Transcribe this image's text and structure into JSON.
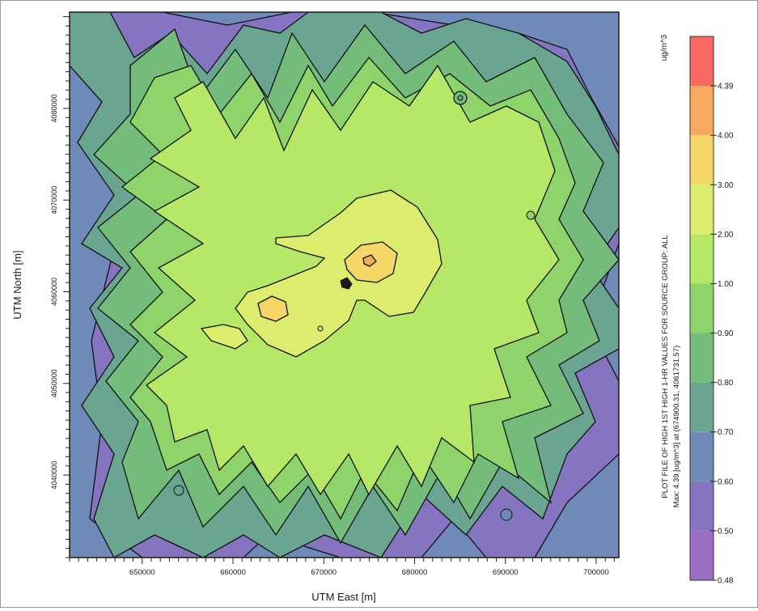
{
  "chart_data": {
    "type": "heatmap",
    "xlabel": "UTM East [m]",
    "ylabel": "UTM North [m]",
    "x_ticks": [
      "650000",
      "660000",
      "670000",
      "680000",
      "690000",
      "700000"
    ],
    "y_ticks": [
      "4080000",
      "4070000",
      "4060000",
      "4050000",
      "4040000"
    ],
    "xlim": [
      642000,
      702500
    ],
    "ylim": [
      4031000,
      4090500
    ],
    "legend_unit": "ug/m^3",
    "legend_levels": [
      {
        "label": "0.48",
        "value": 0.48,
        "color": "#9a6fc3"
      },
      {
        "label": "0.50",
        "value": 0.5,
        "color": "#8574c0"
      },
      {
        "label": "0.60",
        "value": 0.6,
        "color": "#6f89b8"
      },
      {
        "label": "0.70",
        "value": 0.7,
        "color": "#6aa592"
      },
      {
        "label": "0.80",
        "value": 0.8,
        "color": "#74bc7a"
      },
      {
        "label": "0.90",
        "value": 0.9,
        "color": "#8ed46a"
      },
      {
        "label": "1.00",
        "value": 1.0,
        "color": "#b6e766"
      },
      {
        "label": "2.00",
        "value": 2.0,
        "color": "#dcec6c"
      },
      {
        "label": "3.00",
        "value": 3.0,
        "color": "#f4d766"
      },
      {
        "label": "4.00",
        "value": 4.0,
        "color": "#f8a95f"
      },
      {
        "label": "4.39",
        "value": 4.39,
        "color": "#fa6a62"
      }
    ],
    "side_title": "PLOT FILE OF HIGH 1ST HIGH 1-HR VALUES FOR SOURCE GROUP: ALL",
    "side_max": "Max: 4.39 [ug/m^3] at (674900.31, 4061731.57)",
    "grid": false
  }
}
